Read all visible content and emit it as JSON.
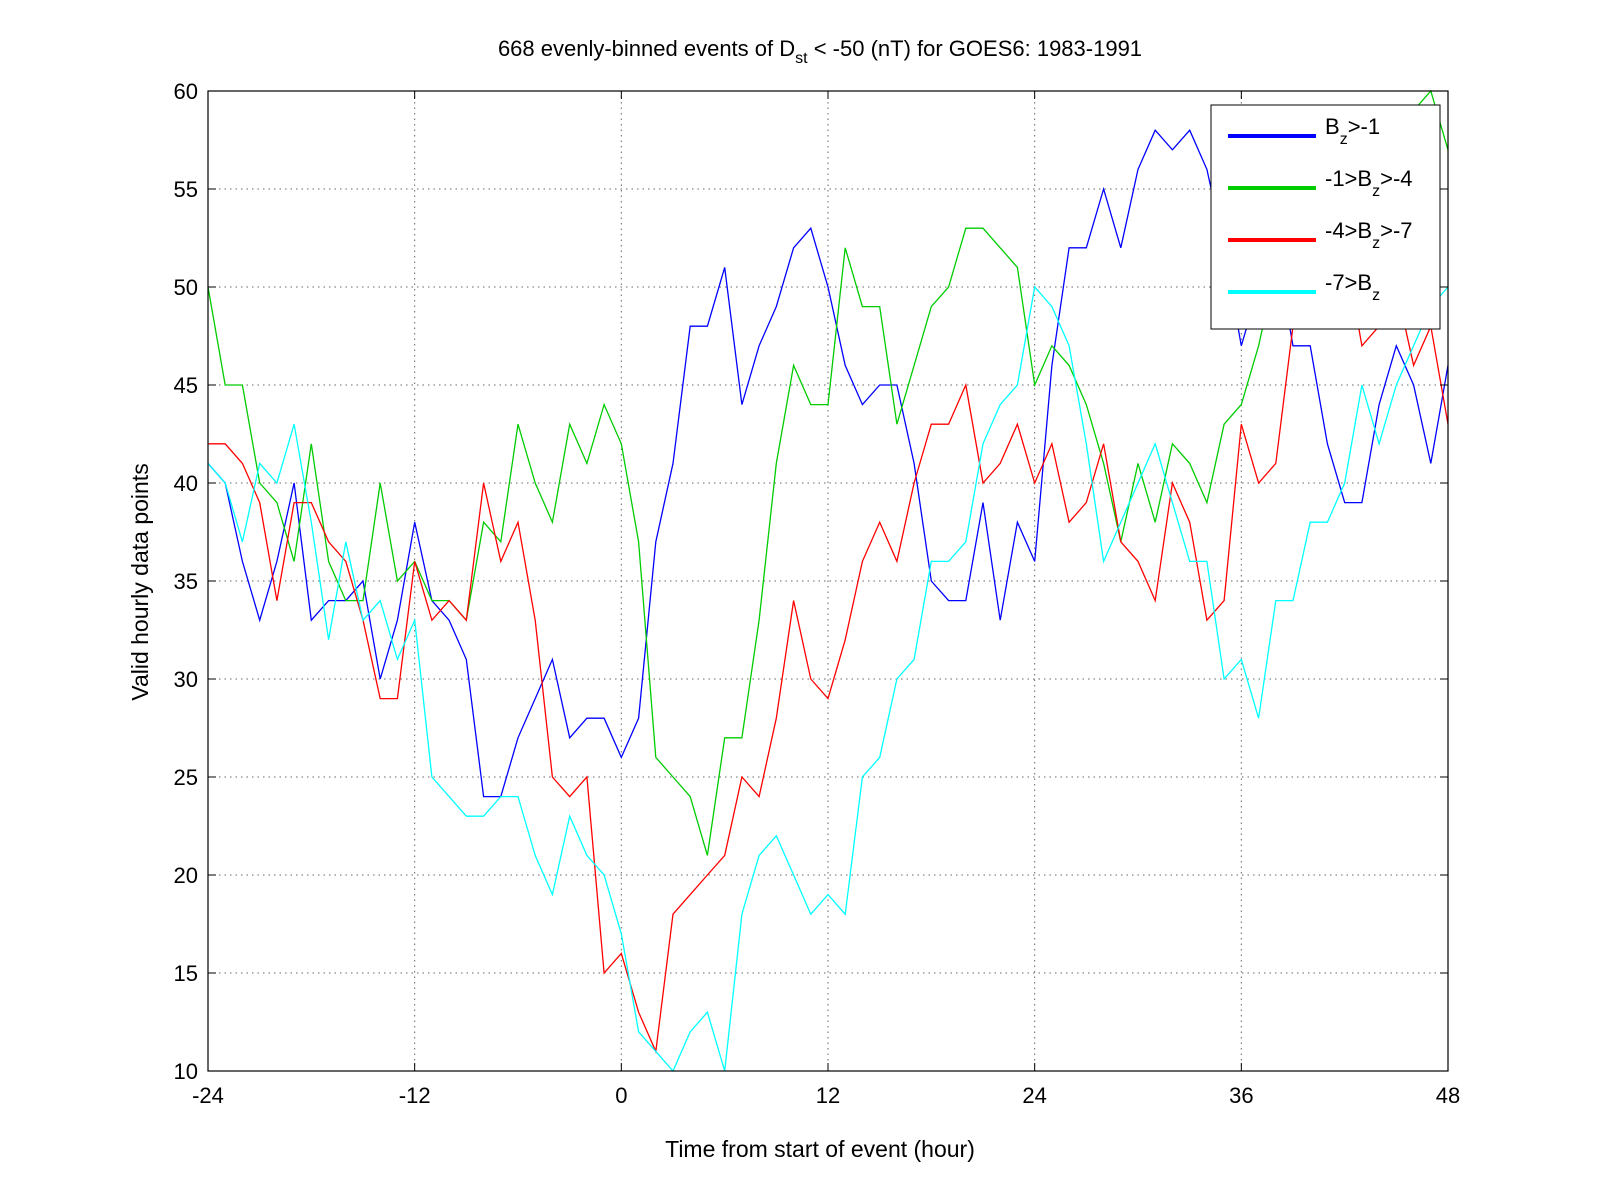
{
  "chart_data": {
    "type": "line",
    "title": {
      "prefix": "668 evenly-binned events of D",
      "sub": "st",
      "suffix": " < -50 (nT) for GOES6: 1983-1991"
    },
    "xlabel": "Time from start of event (hour)",
    "ylabel": "Valid hourly data points",
    "xlim": [
      -24,
      48
    ],
    "ylim": [
      10,
      60
    ],
    "xticks": [
      -24,
      -12,
      0,
      12,
      24,
      36,
      48
    ],
    "yticks": [
      10,
      15,
      20,
      25,
      30,
      35,
      40,
      45,
      50,
      55,
      60
    ],
    "xtick_labels": [
      "-24",
      "-12",
      "0",
      "12",
      "24",
      "36",
      "48"
    ],
    "ytick_labels": [
      "10",
      "15",
      "20",
      "25",
      "30",
      "35",
      "40",
      "45",
      "50",
      "55",
      "60"
    ],
    "grid": true,
    "legend_position": "top-right",
    "x": [
      -24,
      -23,
      -22,
      -21,
      -20,
      -19,
      -18,
      -17,
      -16,
      -15,
      -14,
      -13,
      -12,
      -11,
      -10,
      -9,
      -8,
      -7,
      -6,
      -5,
      -4,
      -3,
      -2,
      -1,
      0,
      1,
      2,
      3,
      4,
      5,
      6,
      7,
      8,
      9,
      10,
      11,
      12,
      13,
      14,
      15,
      16,
      17,
      18,
      19,
      20,
      21,
      22,
      23,
      24,
      25,
      26,
      27,
      28,
      29,
      30,
      31,
      32,
      33,
      34,
      35,
      36,
      37,
      38,
      39,
      40,
      41,
      42,
      43,
      44,
      45,
      46,
      47,
      48
    ],
    "series": [
      {
        "label": [
          {
            "t": "B"
          },
          {
            "t": "z",
            "sub": true
          },
          {
            "t": ">-1"
          }
        ],
        "color": "#0000ff",
        "values": [
          41,
          40,
          36,
          33,
          36,
          40,
          33,
          34,
          34,
          35,
          30,
          33,
          38,
          34,
          33,
          31,
          24,
          24,
          27,
          29,
          31,
          27,
          28,
          28,
          26,
          28,
          37,
          41,
          48,
          48,
          51,
          44,
          47,
          49,
          52,
          53,
          50,
          46,
          44,
          45,
          45,
          41,
          35,
          34,
          34,
          39,
          33,
          38,
          36,
          46,
          52,
          52,
          55,
          52,
          56,
          58,
          57,
          58,
          56,
          52,
          47,
          50,
          52,
          47,
          47,
          42,
          39,
          39,
          44,
          47,
          45,
          41,
          46
        ]
      },
      {
        "label": [
          {
            "t": "-1>B"
          },
          {
            "t": "z",
            "sub": true
          },
          {
            "t": ">-4"
          }
        ],
        "color": "#00cc00",
        "values": [
          50,
          45,
          45,
          40,
          39,
          36,
          42,
          36,
          34,
          34,
          40,
          35,
          36,
          34,
          34,
          33,
          38,
          37,
          43,
          40,
          38,
          43,
          41,
          44,
          42,
          37,
          26,
          25,
          24,
          21,
          27,
          27,
          33,
          41,
          46,
          44,
          44,
          52,
          49,
          49,
          43,
          46,
          49,
          50,
          53,
          53,
          52,
          51,
          45,
          47,
          46,
          44,
          41,
          37,
          41,
          38,
          42,
          41,
          39,
          43,
          44,
          47,
          51,
          50,
          50,
          50,
          52,
          54,
          55,
          58,
          59,
          60,
          57
        ]
      },
      {
        "label": [
          {
            "t": "-4>B"
          },
          {
            "t": "z",
            "sub": true
          },
          {
            "t": ">-7"
          }
        ],
        "color": "#ff0000",
        "values": [
          42,
          42,
          41,
          39,
          34,
          39,
          39,
          37,
          36,
          33,
          29,
          29,
          36,
          33,
          34,
          33,
          40,
          36,
          38,
          33,
          25,
          24,
          25,
          15,
          16,
          13,
          11,
          18,
          19,
          20,
          21,
          25,
          24,
          28,
          34,
          30,
          29,
          32,
          36,
          38,
          36,
          40,
          43,
          43,
          45,
          40,
          41,
          43,
          40,
          42,
          38,
          39,
          42,
          37,
          36,
          34,
          40,
          38,
          33,
          34,
          43,
          40,
          41,
          48,
          50,
          52,
          52,
          47,
          48,
          50,
          46,
          48,
          43
        ]
      },
      {
        "label": [
          {
            "t": "-7>B"
          },
          {
            "t": "z",
            "sub": true
          }
        ],
        "color": "#00ffff",
        "values": [
          41,
          40,
          37,
          41,
          40,
          43,
          38,
          32,
          37,
          33,
          34,
          31,
          33,
          25,
          24,
          23,
          23,
          24,
          24,
          21,
          19,
          23,
          21,
          20,
          17,
          12,
          11,
          10,
          12,
          13,
          10,
          18,
          21,
          22,
          20,
          18,
          19,
          18,
          25,
          26,
          30,
          31,
          36,
          36,
          37,
          42,
          44,
          45,
          50,
          49,
          47,
          42,
          36,
          38,
          40,
          42,
          39,
          36,
          36,
          30,
          31,
          28,
          34,
          34,
          38,
          38,
          40,
          45,
          42,
          45,
          47,
          49,
          50
        ]
      }
    ]
  }
}
